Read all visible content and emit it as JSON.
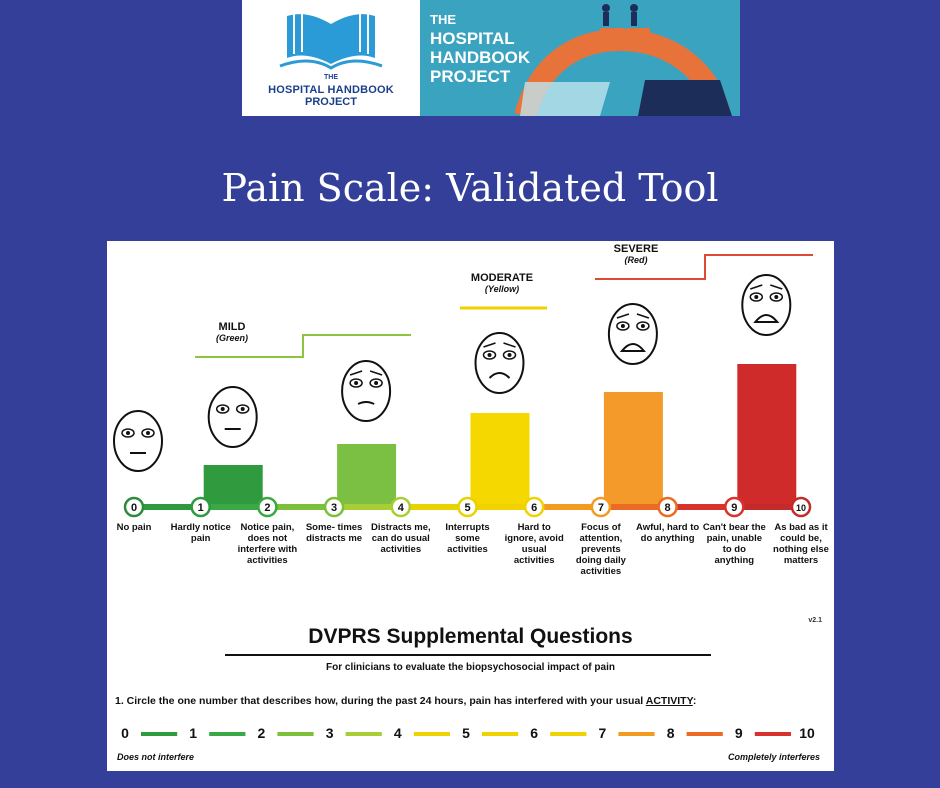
{
  "header": {
    "logo_left": {
      "line1": "THE",
      "line2": "HOSPITAL HANDBOOK",
      "line3": "PROJECT",
      "icon": "open-book-icon",
      "color": "#1b3f8b"
    },
    "logo_right": {
      "line1": "THE",
      "line2": "HOSPITAL",
      "line3": "HANDBOOK",
      "line4": "PROJECT",
      "icon": "plug-connection-icon",
      "bg": "#3aa3bf"
    }
  },
  "page_title": "Pain Scale:  Validated Tool",
  "scale": {
    "categories": [
      {
        "name": "MILD",
        "sub": "(Green)"
      },
      {
        "name": "MODERATE",
        "sub": "(Yellow)"
      },
      {
        "name": "SEVERE",
        "sub": "(Red)"
      }
    ],
    "levels": [
      {
        "n": "0",
        "desc": "No pain",
        "color": "#2e8b3b",
        "bar": 0,
        "face": "neutral"
      },
      {
        "n": "1",
        "desc": "Hardly notice pain",
        "color": "#2e9a3d",
        "bar": 1,
        "face": "neutral"
      },
      {
        "n": "2",
        "desc": "Notice pain, does not interfere with activities",
        "color": "#3aa844",
        "bar": 1,
        "face": "neutral"
      },
      {
        "n": "3",
        "desc": "Some- times distracts me",
        "color": "#7cbf3a",
        "bar": 2,
        "face": "mild"
      },
      {
        "n": "4",
        "desc": "Distracts me, can do usual activities",
        "color": "#a9cd34",
        "bar": 2,
        "face": "mild"
      },
      {
        "n": "5",
        "desc": "Interrupts some activities",
        "color": "#e8d300",
        "bar": 3,
        "face": "moderate"
      },
      {
        "n": "6",
        "desc": "Hard to ignore, avoid usual activities",
        "color": "#f0d200",
        "bar": 3,
        "face": "moderate"
      },
      {
        "n": "7",
        "desc": "Focus of attention, prevents doing daily activities",
        "color": "#f29b20",
        "bar": 4,
        "face": "severe"
      },
      {
        "n": "8",
        "desc": "Awful, hard to do anything",
        "color": "#ec6a24",
        "bar": 4,
        "face": "severe"
      },
      {
        "n": "9",
        "desc": "Can't bear the pain, unable to do anything",
        "color": "#d8322d",
        "bar": 5,
        "face": "worst"
      },
      {
        "n": "10",
        "desc": "As bad as it could be, nothing else matters",
        "color": "#c52a2a",
        "bar": 5,
        "face": "worst"
      }
    ],
    "bar_colors": [
      "#ffffff",
      "#2f9a3e",
      "#7cc043",
      "#f5d800",
      "#f39a2a",
      "#cf2b2b"
    ],
    "version": "v2.1"
  },
  "supplemental": {
    "title": "DVPRS Supplemental Questions",
    "subtitle": "For clinicians to evaluate the biopsychosocial impact of pain",
    "question_prefix": "1. Circle the one number that describes how, during the past 24 hours, pain has interfered with your usual ",
    "question_keyword": "ACTIVITY",
    "question_suffix": ":",
    "numbers": [
      "0",
      "1",
      "2",
      "3",
      "4",
      "5",
      "6",
      "7",
      "8",
      "9",
      "10"
    ],
    "segment_colors": [
      "#2f9a3e",
      "#3aa844",
      "#7cbf3a",
      "#a9cd34",
      "#f0d200",
      "#f0d200",
      "#f0d200",
      "#f29b20",
      "#ec6a24",
      "#d8322d"
    ],
    "anchor_left": "Does not interfere",
    "anchor_right": "Completely interferes"
  }
}
